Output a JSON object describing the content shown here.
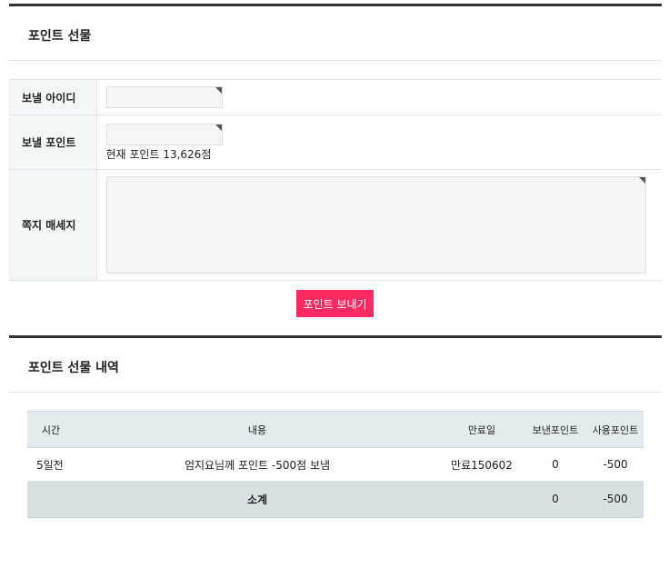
{
  "gift": {
    "title": "포인트 선물",
    "id_label": "보낼 아이디",
    "id_value": "",
    "point_label": "보낼 포인트",
    "point_value": "",
    "current_points": "현재 포인트 13,626점",
    "message_label": "쪽지 매세지",
    "message_value": "",
    "send_button": "포인트 보내기",
    "accent": "#ff2b62"
  },
  "history": {
    "title": "포인트 선물 내역",
    "headers": [
      "시간",
      "내용",
      "만료일",
      "보낸포인트",
      "사용포인트"
    ],
    "rows": [
      {
        "time": "5일전",
        "content": "엄지요님께 포인트 -500점 보냄",
        "expiry": "만료150602",
        "sent": "0",
        "used": "-500"
      }
    ],
    "subtotal": {
      "label": "소계",
      "sent": "0",
      "used": "-500"
    }
  }
}
